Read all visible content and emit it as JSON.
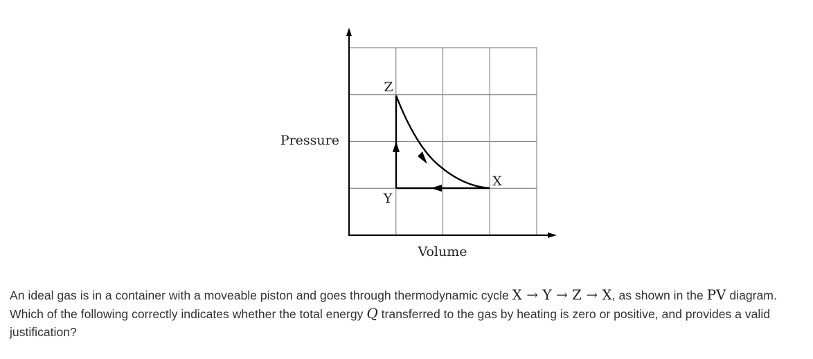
{
  "diagram": {
    "y_axis_label": "Pressure",
    "x_axis_label": "Volume",
    "points": {
      "X": "X",
      "Y": "Y",
      "Z": "Z"
    },
    "grid": {
      "columns": 4,
      "rows": 4
    },
    "stroke_color": "#000000",
    "grid_color": "#888888"
  },
  "question": {
    "intro": "An ideal gas is in a container with a moveable piston and goes through thermodynamic cycle ",
    "cycle": "X → Y → Z → X",
    "after_cycle": ", as shown in the ",
    "pv": "PV",
    "after_pv": " diagram. Which of the following correctly indicates whether the total energy ",
    "q": "Q",
    "after_q": " transferred to the gas by heating is zero or positive, and provides a valid justification?"
  }
}
